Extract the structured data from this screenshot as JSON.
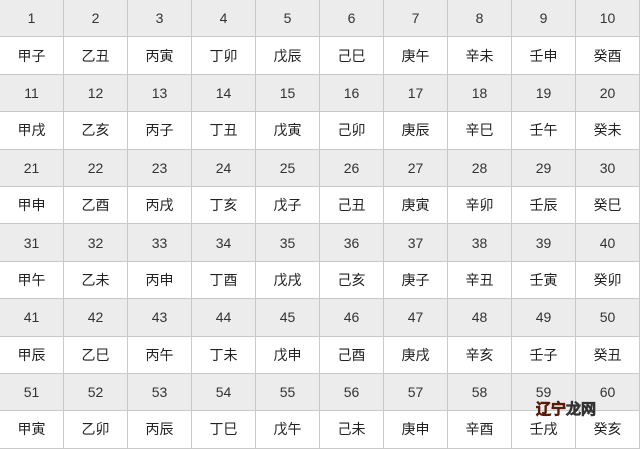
{
  "table": {
    "numbers": [
      [
        "1",
        "2",
        "3",
        "4",
        "5",
        "6",
        "7",
        "8",
        "9",
        "10"
      ],
      [
        "11",
        "12",
        "13",
        "14",
        "15",
        "16",
        "17",
        "18",
        "19",
        "20"
      ],
      [
        "21",
        "22",
        "23",
        "24",
        "25",
        "26",
        "27",
        "28",
        "29",
        "30"
      ],
      [
        "31",
        "32",
        "33",
        "34",
        "35",
        "36",
        "37",
        "38",
        "39",
        "40"
      ],
      [
        "41",
        "42",
        "43",
        "44",
        "45",
        "46",
        "47",
        "48",
        "49",
        "50"
      ],
      [
        "51",
        "52",
        "53",
        "54",
        "55",
        "56",
        "57",
        "58",
        "59",
        "60"
      ]
    ],
    "ganzhi": [
      [
        "甲子",
        "乙丑",
        "丙寅",
        "丁卯",
        "戊辰",
        "己巳",
        "庚午",
        "辛未",
        "壬申",
        "癸酉"
      ],
      [
        "甲戌",
        "乙亥",
        "丙子",
        "丁丑",
        "戊寅",
        "己卯",
        "庚辰",
        "辛巳",
        "壬午",
        "癸未"
      ],
      [
        "甲申",
        "乙酉",
        "丙戌",
        "丁亥",
        "戊子",
        "己丑",
        "庚寅",
        "辛卯",
        "壬辰",
        "癸巳"
      ],
      [
        "甲午",
        "乙未",
        "丙申",
        "丁酉",
        "戊戌",
        "己亥",
        "庚子",
        "辛丑",
        "壬寅",
        "癸卯"
      ],
      [
        "甲辰",
        "乙巳",
        "丙午",
        "丁未",
        "戊申",
        "己酉",
        "庚戌",
        "辛亥",
        "壬子",
        "癸丑"
      ],
      [
        "甲寅",
        "乙卯",
        "丙辰",
        "丁巳",
        "戊午",
        "己未",
        "庚申",
        "辛酉",
        "壬戌",
        "癸亥"
      ]
    ]
  },
  "watermark": {
    "part1": "辽宁",
    "part2": "龙网"
  },
  "colors": {
    "number_row_bg": "#ececec",
    "border": "#c9c9c9",
    "watermark_accent": "#e8431c"
  }
}
